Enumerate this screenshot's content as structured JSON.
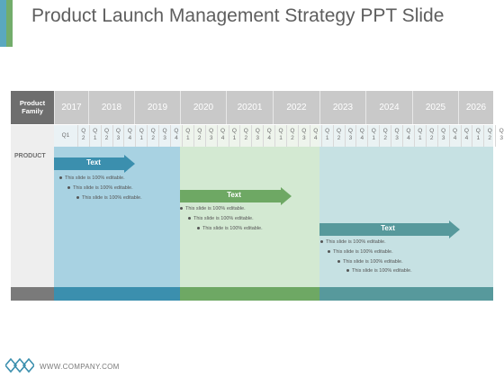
{
  "title": "Product Launch Management Strategy PPT Slide",
  "footer": {
    "website": "WWW.COMPANY.COM"
  },
  "colors": {
    "blue": "#3b8fae",
    "green": "#6ea864",
    "teal": "#57999c",
    "grey": "#6e6e6e"
  },
  "table": {
    "family_header": "Product Family",
    "row_label": "PRODUCT",
    "years": [
      "2017",
      "2018",
      "2019",
      "2020",
      "20201",
      "2022",
      "2023",
      "2024",
      "2025",
      "2026"
    ],
    "first_quarter": "Q1",
    "quarters": [
      [
        "Q",
        "2"
      ],
      [
        "Q",
        "1"
      ],
      [
        "Q",
        "2"
      ],
      [
        "Q",
        "3"
      ],
      [
        "Q",
        "4"
      ],
      [
        "Q",
        "1"
      ],
      [
        "Q",
        "2"
      ],
      [
        "Q",
        "3"
      ],
      [
        "Q",
        "4"
      ],
      [
        "Q",
        "1"
      ],
      [
        "Q",
        "2"
      ],
      [
        "Q",
        "3"
      ],
      [
        "Q",
        "4"
      ],
      [
        "Q",
        "1"
      ],
      [
        "Q",
        "2"
      ],
      [
        "Q",
        "3"
      ],
      [
        "Q",
        "4"
      ],
      [
        "Q",
        "1"
      ],
      [
        "Q",
        "2"
      ],
      [
        "Q",
        "3"
      ],
      [
        "Q",
        "4"
      ],
      [
        "Q",
        "1"
      ],
      [
        "Q",
        "2"
      ],
      [
        "Q",
        "3"
      ],
      [
        "Q",
        "4"
      ],
      [
        "Q",
        "1"
      ],
      [
        "Q",
        "2"
      ],
      [
        "Q",
        "3"
      ],
      [
        "Q",
        "4"
      ],
      [
        "Q",
        "1"
      ],
      [
        "Q",
        "2"
      ],
      [
        "Q",
        "3"
      ],
      [
        "Q",
        "4"
      ],
      [
        "Q",
        "4"
      ],
      [
        "Q",
        "1"
      ],
      [
        "Q",
        "2"
      ],
      [
        "Q",
        "3"
      ]
    ]
  },
  "phases": [
    {
      "label": "Text",
      "bullets": [
        "This slide is 100% editable.",
        "This slide is 100% editable.",
        "This slide is 100% editable."
      ]
    },
    {
      "label": "Text",
      "bullets": [
        "This slide is 100% editable.",
        "This slide is 100% editable.",
        "This slide is 100% editable."
      ]
    },
    {
      "label": "Text",
      "bullets": [
        "This slide is 100% editable.",
        "This slide is 100% editable.",
        "This slide is 100% editable.",
        "This slide is 100% editable."
      ]
    }
  ]
}
